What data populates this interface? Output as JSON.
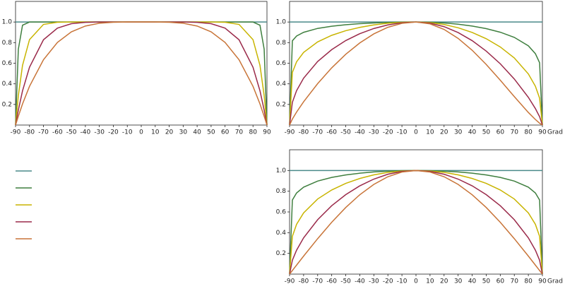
{
  "chart_data": [
    {
      "type": "line",
      "x": [
        -90,
        -88,
        -85,
        -80,
        -70,
        -60,
        -50,
        -40,
        -30,
        -20,
        -10,
        0,
        10,
        20,
        30,
        40,
        50,
        60,
        70,
        80,
        85,
        88,
        90
      ],
      "xlim": [
        -90,
        90
      ],
      "ylim": [
        0,
        1.2
      ],
      "xticks": [
        -90,
        -80,
        -70,
        -60,
        -50,
        -40,
        -30,
        -20,
        -10,
        0,
        10,
        20,
        30,
        40,
        50,
        60,
        70,
        80,
        90
      ],
      "yticks": [
        0.2,
        0.4,
        0.6,
        0.8,
        {
          "value": 1,
          "label": "1.0"
        }
      ],
      "series": [
        {
          "color": "#4a8a8a",
          "values": [
            1,
            1,
            1,
            1,
            1,
            1,
            1,
            1,
            1,
            1,
            1,
            1,
            1,
            1,
            1,
            1,
            1,
            1,
            1,
            1,
            1,
            1,
            1
          ]
        },
        {
          "color": "#3f7f3f",
          "values": [
            0,
            0.736,
            0.969,
            1,
            1,
            1,
            1,
            1,
            1,
            1,
            1,
            1,
            1,
            1,
            1,
            1,
            1,
            1,
            1,
            1,
            0.969,
            0.736,
            0
          ]
        },
        {
          "color": "#c8b400",
          "values": [
            0,
            0.285,
            0.579,
            0.829,
            0.977,
            0.998,
            1,
            1,
            1,
            1,
            1,
            1,
            1,
            1,
            1,
            1,
            1,
            0.998,
            0.977,
            0.829,
            0.579,
            0.285,
            0
          ]
        },
        {
          "color": "#9a2a4a",
          "values": [
            0,
            0.145,
            0.332,
            0.561,
            0.828,
            0.941,
            0.984,
            0.997,
            1,
            1,
            1,
            1,
            1,
            1,
            1,
            0.997,
            0.984,
            0.941,
            0.828,
            0.561,
            0.332,
            0.145,
            0
          ]
        },
        {
          "color": "#c87438",
          "values": [
            0,
            0.085,
            0.205,
            0.376,
            0.634,
            0.802,
            0.905,
            0.961,
            0.988,
            0.998,
            1,
            1,
            1,
            0.998,
            0.988,
            0.961,
            0.905,
            0.802,
            0.634,
            0.376,
            0.205,
            0.085,
            0
          ]
        }
      ]
    },
    {
      "type": "line",
      "xlabel": "Grad",
      "x": [
        -90,
        -88,
        -85,
        -80,
        -70,
        -60,
        -50,
        -40,
        -30,
        -20,
        -10,
        0,
        10,
        20,
        30,
        40,
        50,
        60,
        70,
        80,
        85,
        88,
        90
      ],
      "xlim": [
        -90,
        90
      ],
      "ylim": [
        0,
        1.2
      ],
      "xticks": [
        -90,
        -80,
        -70,
        -60,
        -50,
        -40,
        -30,
        -20,
        -10,
        0,
        10,
        20,
        30,
        40,
        50,
        60,
        70,
        80,
        90
      ],
      "yticks": [
        0.2,
        0.4,
        0.6,
        0.8,
        {
          "value": 1,
          "label": "1.0"
        }
      ],
      "series": [
        {
          "color": "#4a8a8a",
          "values": [
            1,
            1,
            1,
            1,
            1,
            1,
            1,
            1,
            1,
            1,
            1,
            1,
            1,
            1,
            1,
            1,
            1,
            1,
            1,
            1,
            1,
            1,
            1
          ]
        },
        {
          "color": "#3f7f3f",
          "values": [
            0,
            0.818,
            0.864,
            0.9,
            0.938,
            0.959,
            0.974,
            0.984,
            0.991,
            0.996,
            0.999,
            1,
            0.998,
            0.991,
            0.979,
            0.961,
            0.936,
            0.901,
            0.851,
            0.769,
            0.693,
            0.605,
            0
          ]
        },
        {
          "color": "#c8b400",
          "values": [
            0,
            0.511,
            0.614,
            0.705,
            0.807,
            0.871,
            0.916,
            0.948,
            0.972,
            0.988,
            0.997,
            1,
            0.994,
            0.976,
            0.944,
            0.899,
            0.838,
            0.758,
            0.651,
            0.496,
            0.377,
            0.261,
            0
          ]
        },
        {
          "color": "#9a2a4a",
          "values": [
            0,
            0.221,
            0.334,
            0.455,
            0.617,
            0.732,
            0.82,
            0.887,
            0.937,
            0.972,
            0.993,
            1,
            0.989,
            0.955,
            0.898,
            0.819,
            0.718,
            0.595,
            0.447,
            0.269,
            0.16,
            0.081,
            0
          ]
        },
        {
          "color": "#c87438",
          "values": [
            0,
            0.058,
            0.126,
            0.226,
            0.402,
            0.555,
            0.687,
            0.797,
            0.885,
            0.949,
            0.987,
            1,
            0.982,
            0.928,
            0.841,
            0.726,
            0.588,
            0.435,
            0.276,
            0.122,
            0.054,
            0.018,
            0
          ]
        }
      ]
    },
    {
      "type": "line",
      "xlabel": "Grad",
      "x": [
        -90,
        -88,
        -85,
        -80,
        -70,
        -60,
        -50,
        -40,
        -30,
        -20,
        -10,
        0,
        10,
        20,
        30,
        40,
        50,
        60,
        70,
        80,
        85,
        88,
        90
      ],
      "xlim": [
        -90,
        90
      ],
      "ylim": [
        0,
        1.2
      ],
      "xticks": [
        -90,
        -80,
        -70,
        -60,
        -50,
        -40,
        -30,
        -20,
        -10,
        0,
        10,
        20,
        30,
        40,
        50,
        60,
        70,
        80,
        90
      ],
      "yticks": [
        0.2,
        0.4,
        0.6,
        0.8,
        {
          "value": 1,
          "label": "1.0"
        }
      ],
      "series": [
        {
          "color": "#4a8a8a",
          "values": [
            1,
            1,
            1,
            1,
            1,
            1,
            1,
            1,
            1,
            1,
            1,
            1,
            1,
            1,
            1,
            1,
            1,
            1,
            1,
            1,
            1,
            1,
            1
          ]
        },
        {
          "color": "#3f7f3f",
          "values": [
            0,
            0.715,
            0.783,
            0.839,
            0.898,
            0.933,
            0.957,
            0.974,
            0.986,
            0.994,
            0.998,
            1,
            0.998,
            0.994,
            0.986,
            0.974,
            0.957,
            0.933,
            0.898,
            0.839,
            0.783,
            0.715,
            0
          ]
        },
        {
          "color": "#c8b400",
          "values": [
            0,
            0.365,
            0.481,
            0.591,
            0.725,
            0.812,
            0.876,
            0.923,
            0.958,
            0.982,
            0.995,
            1,
            0.995,
            0.982,
            0.958,
            0.923,
            0.876,
            0.812,
            0.725,
            0.591,
            0.481,
            0.365,
            0
          ]
        },
        {
          "color": "#9a2a4a",
          "values": [
            0,
            0.134,
            0.231,
            0.35,
            0.525,
            0.66,
            0.767,
            0.852,
            0.917,
            0.964,
            0.991,
            1,
            0.991,
            0.964,
            0.917,
            0.852,
            0.767,
            0.66,
            0.525,
            0.35,
            0.231,
            0.134,
            0
          ]
        },
        {
          "color": "#c87438",
          "values": [
            0,
            0.035,
            0.087,
            0.174,
            0.342,
            0.5,
            0.643,
            0.766,
            0.866,
            0.94,
            0.985,
            1,
            0.985,
            0.94,
            0.866,
            0.766,
            0.643,
            0.5,
            0.342,
            0.174,
            0.087,
            0.035,
            0
          ]
        }
      ]
    }
  ]
}
